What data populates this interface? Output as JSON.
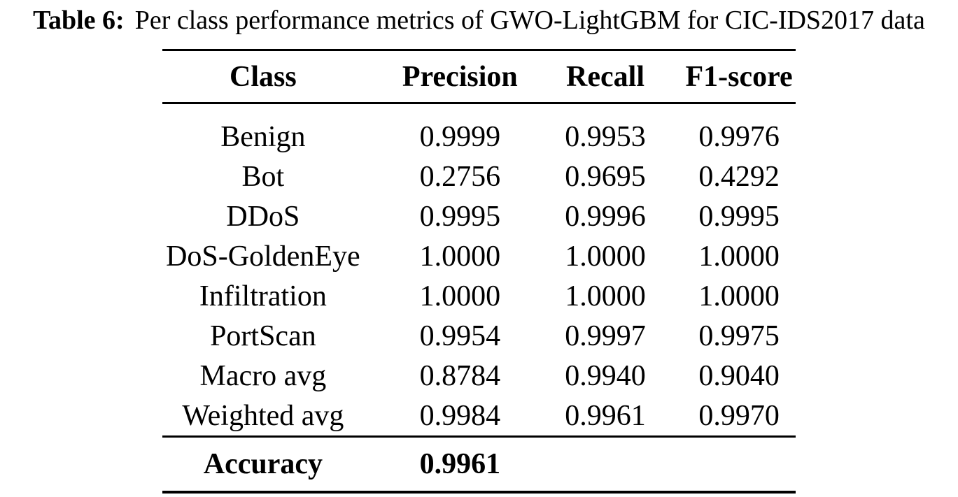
{
  "caption": {
    "label": "Table 6:",
    "text": "Per class performance metrics of GWO-LightGBM for CIC-IDS2017 data"
  },
  "table": {
    "headers": [
      "Class",
      "Precision",
      "Recall",
      "F1-score"
    ],
    "rows": [
      {
        "class": "Benign",
        "precision": "0.9999",
        "recall": "0.9953",
        "f1": "0.9976"
      },
      {
        "class": "Bot",
        "precision": "0.2756",
        "recall": "0.9695",
        "f1": "0.4292"
      },
      {
        "class": "DDoS",
        "precision": "0.9995",
        "recall": "0.9996",
        "f1": "0.9995"
      },
      {
        "class": "DoS-GoldenEye",
        "precision": "1.0000",
        "recall": "1.0000",
        "f1": "1.0000"
      },
      {
        "class": "Infiltration",
        "precision": "1.0000",
        "recall": "1.0000",
        "f1": "1.0000"
      },
      {
        "class": "PortScan",
        "precision": "0.9954",
        "recall": "0.9997",
        "f1": "0.9975"
      },
      {
        "class": "Macro avg",
        "precision": "0.8784",
        "recall": "0.9940",
        "f1": "0.9040"
      },
      {
        "class": "Weighted avg",
        "precision": "0.9984",
        "recall": "0.9961",
        "f1": "0.9970"
      }
    ],
    "footer": {
      "label": "Accuracy",
      "value": "0.9961"
    }
  },
  "colors": {
    "text": "#000000",
    "background": "#ffffff",
    "rule": "#000000"
  }
}
